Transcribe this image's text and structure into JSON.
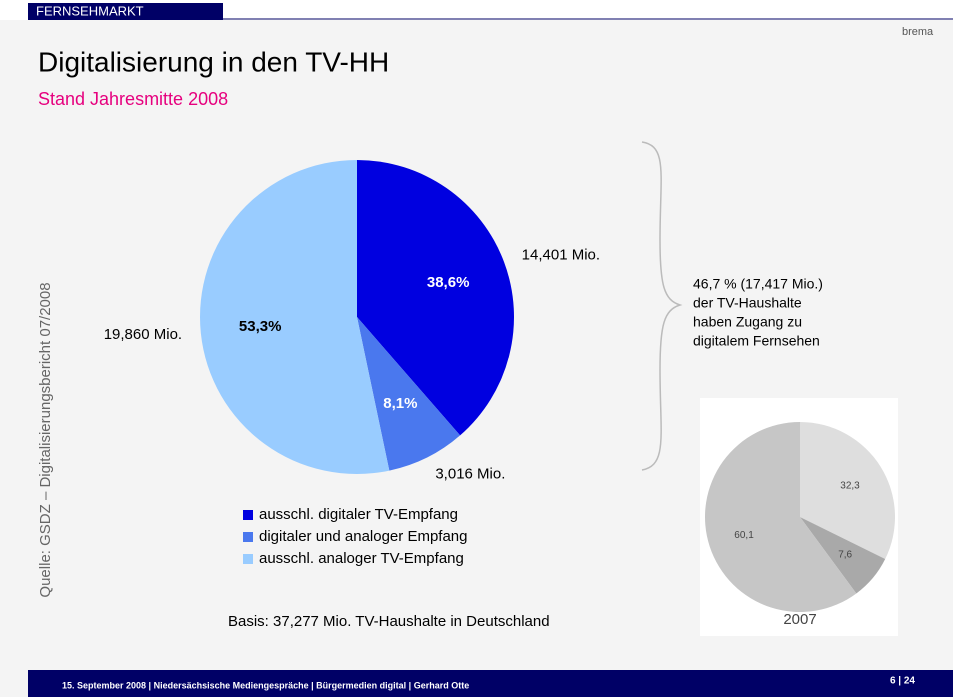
{
  "header": {
    "section": "FERNSEHMARKT",
    "logo": "brema",
    "title": "Digitalisierung in den TV-HH",
    "subtitle": "Stand Jahresmitte 2008"
  },
  "source": "Quelle: GSDZ – Digitalisierungsbericht 07/2008",
  "chart_data": [
    {
      "type": "pie",
      "categories": [
        "ausschl. digitaler TV-Empfang",
        "digitaler und analoger Empfang",
        "ausschl. analoger TV-Empfang"
      ],
      "values": [
        38.6,
        8.1,
        53.3
      ],
      "value_labels": [
        "38,6%",
        "8,1%",
        "53,3%"
      ],
      "outer_labels": [
        "14,401 Mio.",
        "3,016 Mio.",
        "19,860 Mio."
      ],
      "colors": [
        "#0000e0",
        "#4a78ee",
        "#99ccff"
      ],
      "legend": "bottom"
    },
    {
      "type": "pie",
      "title": "2007",
      "values": [
        32.3,
        7.6,
        60.1
      ],
      "value_labels": [
        "32,3",
        "7,6",
        "60,1"
      ],
      "colors": [
        "#dedede",
        "#a9a9a9",
        "#c6c6c6"
      ]
    }
  ],
  "annotation": [
    "46,7 % (17,417 Mio.)",
    "der TV-Haushalte",
    "haben Zugang zu",
    "digitalem Fernsehen"
  ],
  "basis": "Basis: 37,277 Mio. TV-Haushalte in Deutschland",
  "footer": {
    "text": "15. September 2008  |  Niedersächsische Mediengespräche  |  Bürgermedien digital  |  Gerhard Otte",
    "page": "6 | 24"
  }
}
